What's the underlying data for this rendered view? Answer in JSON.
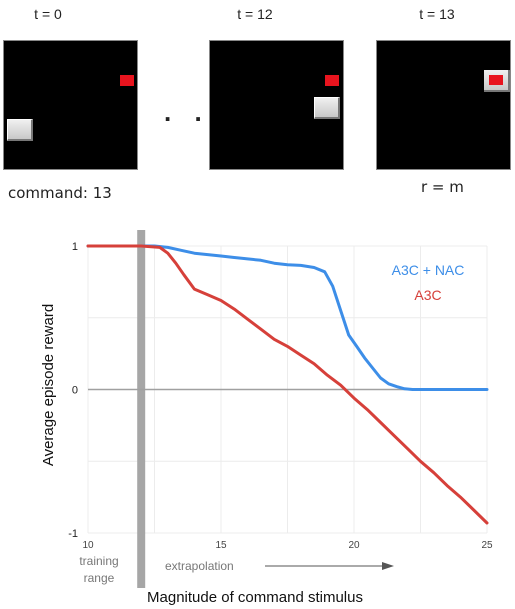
{
  "frames": {
    "labels": [
      "t = 0",
      "t = 12",
      "t = 13"
    ],
    "command_caption": "command: 13",
    "reward_caption": "r = m",
    "ellipsis": ". ."
  },
  "colors": {
    "nac": "#3d8ee8",
    "a3c": "#d6403a",
    "training_bar": "#a6a6a6",
    "zero_line": "#a0a0a0",
    "grid": "#ececec",
    "target": "#e8141e"
  },
  "chart_data": {
    "type": "line",
    "xlabel": "Magnitude of command stimulus",
    "ylabel": "Average episode reward",
    "xlim": [
      10,
      25
    ],
    "ylim": [
      -1,
      1
    ],
    "xticks": [
      10,
      15,
      20,
      25
    ],
    "yticks": [
      -1,
      0,
      1
    ],
    "training_boundary": 12,
    "training_label_line1": "training",
    "training_label_line2": "range",
    "extrapolation_label": "extrapolation",
    "grid": true,
    "legend_position": "top-right",
    "series": [
      {
        "name": "A3C + NAC",
        "color": "#3d8ee8",
        "x": [
          10,
          11,
          12,
          12.5,
          13,
          13.5,
          14,
          14.5,
          15,
          15.5,
          16,
          16.5,
          17,
          17.5,
          18,
          18.5,
          18.9,
          19.2,
          19.5,
          19.8,
          20.1,
          20.4,
          20.7,
          21,
          21.3,
          21.6,
          21.9,
          22.2,
          23,
          24,
          25
        ],
        "y": [
          1,
          1,
          1,
          1,
          0.99,
          0.97,
          0.95,
          0.94,
          0.93,
          0.92,
          0.91,
          0.9,
          0.88,
          0.87,
          0.865,
          0.85,
          0.82,
          0.72,
          0.55,
          0.38,
          0.3,
          0.22,
          0.15,
          0.08,
          0.04,
          0.02,
          0.005,
          0,
          0,
          0,
          0
        ]
      },
      {
        "name": "A3C",
        "color": "#d6403a",
        "x": [
          10,
          11,
          12,
          12.7,
          13,
          13.3,
          13.6,
          14,
          14.5,
          15,
          15.5,
          16,
          16.5,
          17,
          17.5,
          18,
          18.5,
          19,
          19.5,
          20,
          20.5,
          21,
          21.5,
          22,
          22.5,
          23,
          23.5,
          24,
          24.5,
          25
        ],
        "y": [
          1,
          1,
          1,
          0.99,
          0.95,
          0.88,
          0.8,
          0.7,
          0.66,
          0.62,
          0.56,
          0.49,
          0.42,
          0.35,
          0.3,
          0.24,
          0.18,
          0.1,
          0.03,
          -0.06,
          -0.14,
          -0.23,
          -0.32,
          -0.41,
          -0.5,
          -0.58,
          -0.67,
          -0.75,
          -0.84,
          -0.93
        ]
      }
    ]
  }
}
